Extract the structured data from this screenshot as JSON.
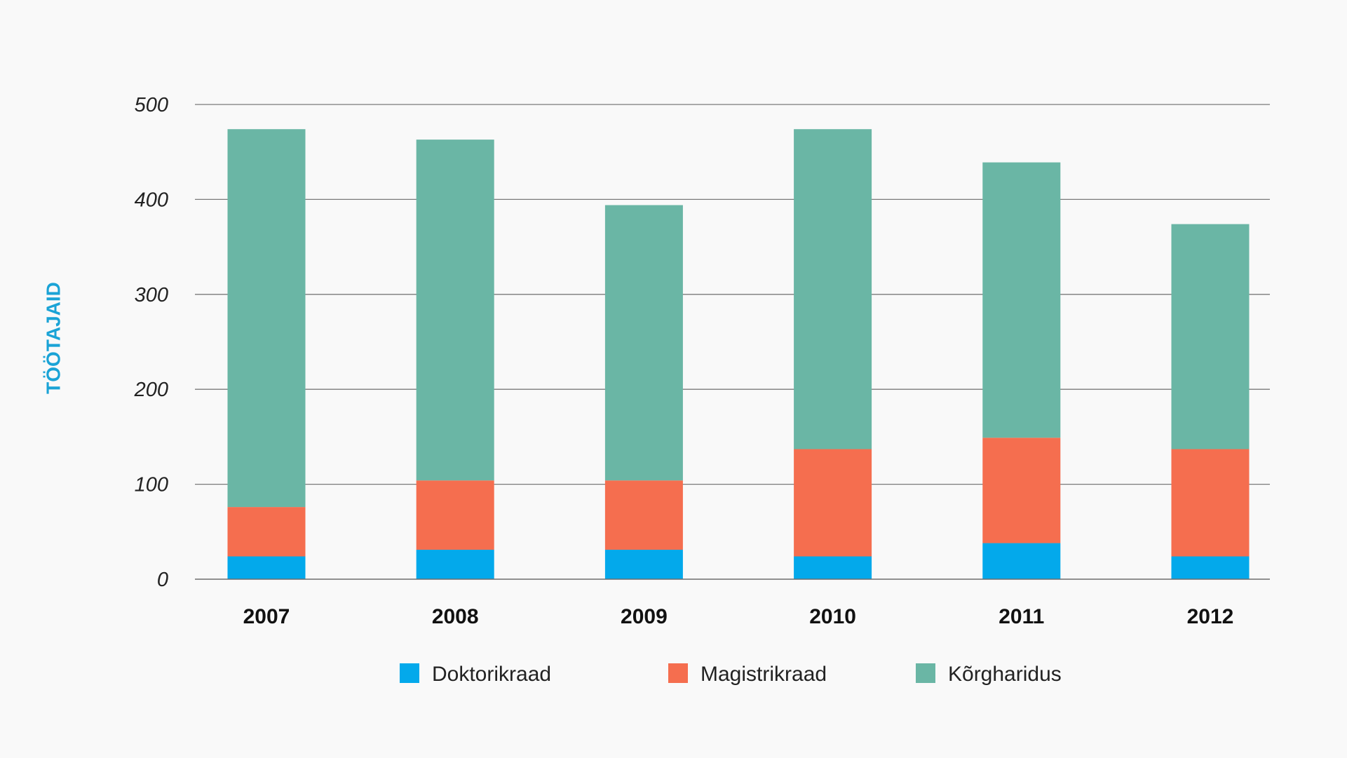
{
  "chart_data": {
    "type": "bar",
    "stacked": true,
    "categories": [
      "2007",
      "2008",
      "2009",
      "2010",
      "2011",
      "2012"
    ],
    "series": [
      {
        "name": "Doktorikraad",
        "color": "#03a9eb",
        "values": [
          24,
          31,
          31,
          24,
          38,
          24
        ]
      },
      {
        "name": "Magistrikraad",
        "color": "#f56e4f",
        "values": [
          52,
          73,
          73,
          113,
          111,
          113
        ]
      },
      {
        "name": "Kõrgharidus",
        "color": "#6ab6a5",
        "values": [
          398,
          359,
          290,
          337,
          290,
          237
        ]
      }
    ],
    "title": "",
    "xlabel": "",
    "ylabel": "TÖÖTAJAID",
    "ylabel_color": "#1aa3d6",
    "ylim": [
      0,
      500
    ],
    "yticks": [
      0,
      100,
      200,
      300,
      400,
      500
    ],
    "grid": true,
    "legend_position": "bottom-center"
  }
}
